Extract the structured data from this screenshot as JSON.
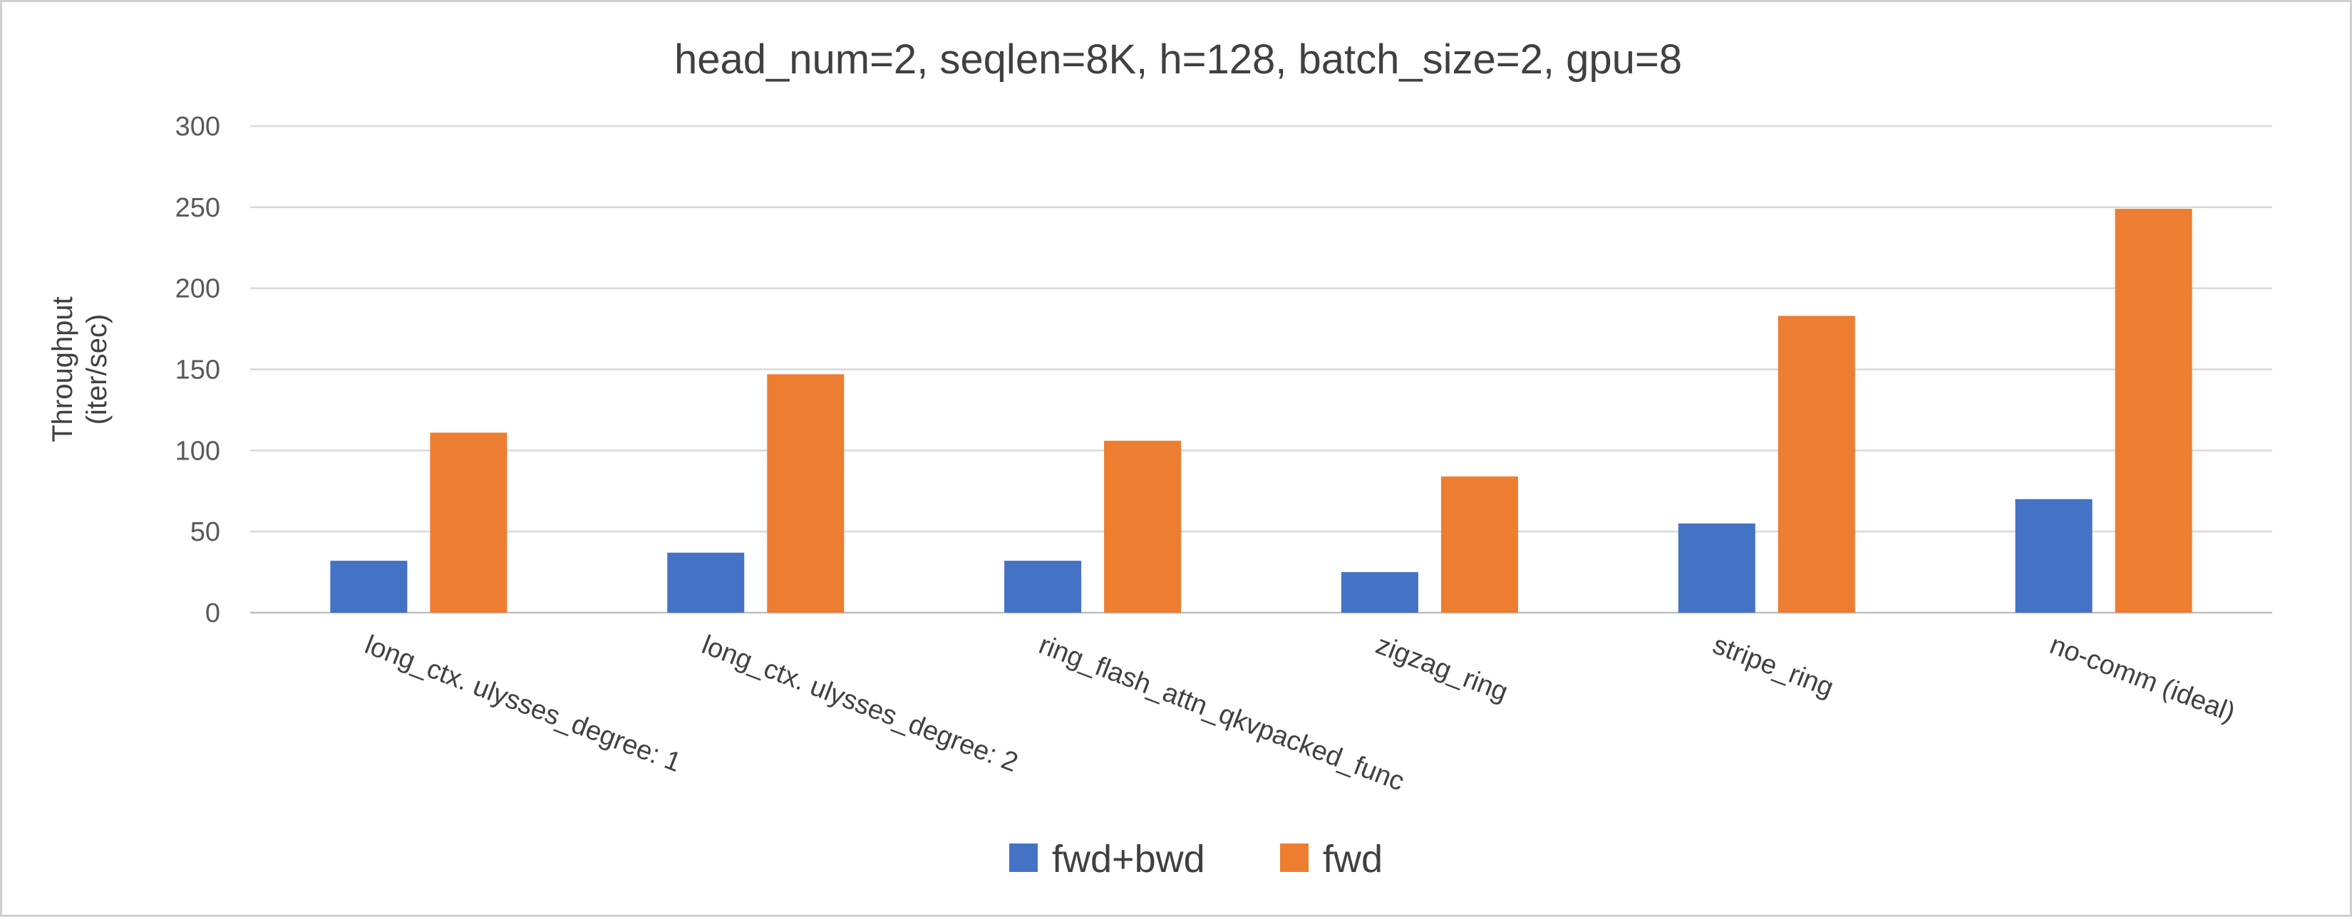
{
  "chart_data": {
    "type": "bar",
    "title": "head_num=2, seqlen=8K, h=128, batch_size=2, gpu=8",
    "xlabel": "",
    "ylabel_lines": [
      "Throughput",
      "(iter/sec)"
    ],
    "categories": [
      "long_ctx. ulysses_degree: 1",
      "long_ctx. ulysses_degree: 2",
      "ring_flash_attn_qkvpacked_func",
      "zigzag_ring",
      "stripe_ring",
      "no-comm (ideal)"
    ],
    "series": [
      {
        "name": "fwd+bwd",
        "color": "#4472C4",
        "values": [
          32,
          37,
          32,
          25,
          55,
          70
        ]
      },
      {
        "name": "fwd",
        "color": "#ED7D31",
        "values": [
          111,
          147,
          106,
          84,
          183,
          249
        ]
      }
    ],
    "ylim": [
      0,
      300
    ],
    "yticks": [
      0,
      50,
      100,
      150,
      200,
      250,
      300
    ],
    "grid": true,
    "legend_position": "bottom"
  }
}
